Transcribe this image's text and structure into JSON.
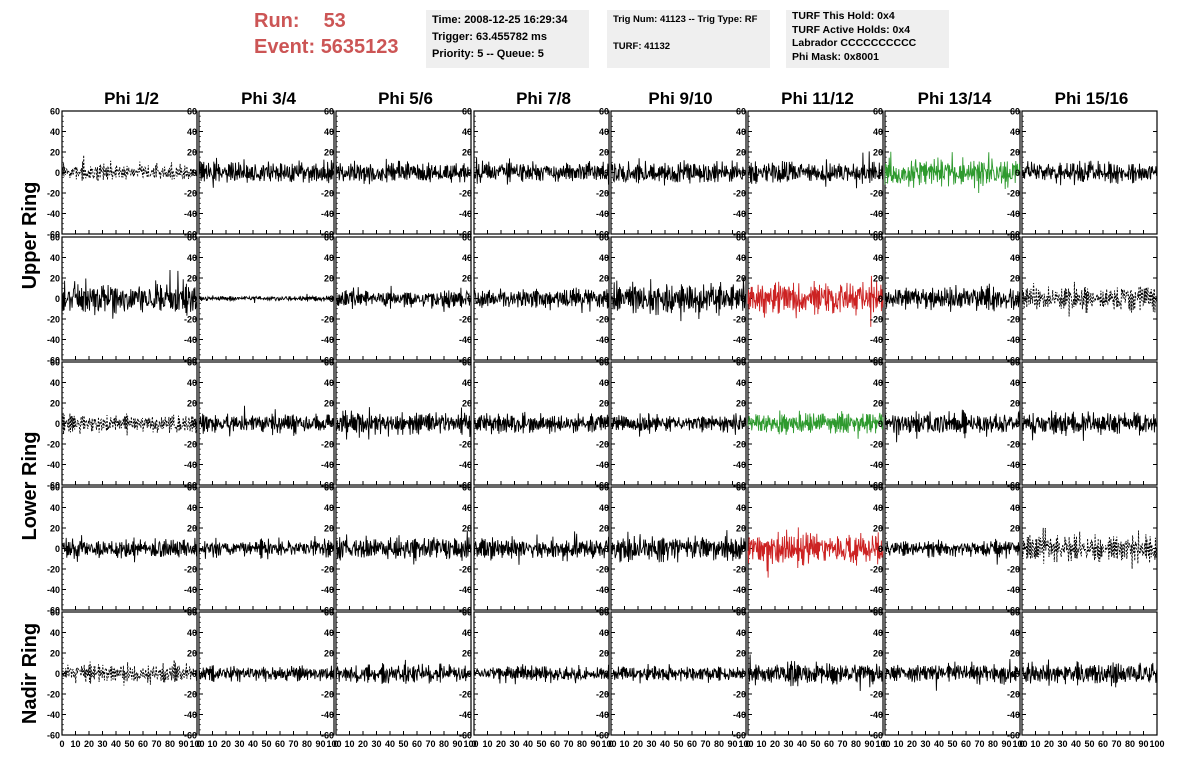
{
  "header": {
    "run_label": "Run:",
    "run_value": "53",
    "event_label": "Event:",
    "event_value": "5635123",
    "time_line": "Time: 2008-12-25 16:29:34",
    "trigger_line": "Trigger: 63.455782 ms",
    "priority_line": "Priority: 5 -- Queue: 5",
    "trig_line": "Trig Num: 41123 -- Trig Type: RF",
    "turf_line": "TURF: 41132",
    "turf_hold_line": "TURF This Hold: 0x4",
    "turf_active_line": "TURF Active Holds: 0x4",
    "labrador_line": "Labrador CCCCCCCCCC",
    "phi_mask_line": "Phi Mask: 0x8001"
  },
  "colors": {
    "header_red": "#cc5555",
    "info_bg": "#efefef",
    "trace_black": "#000000",
    "trace_green": "#2e9a2e",
    "trace_red": "#cc2222"
  },
  "chart_data": {
    "type": "line",
    "columns": [
      "Phi 1/2",
      "Phi 3/4",
      "Phi 5/6",
      "Phi 7/8",
      "Phi 9/10",
      "Phi 11/12",
      "Phi 13/14",
      "Phi 15/16"
    ],
    "rows": [
      "Upper Ring",
      "Lower Ring",
      "Nadir Ring"
    ],
    "xlim": [
      0,
      100
    ],
    "ylim": [
      -60,
      60
    ],
    "x_ticks": [
      0,
      10,
      20,
      30,
      40,
      50,
      60,
      70,
      80,
      90,
      100
    ],
    "x_tick_labels": [
      "0",
      "10",
      "20",
      "30",
      "40",
      "50",
      "60",
      "70",
      "80",
      "90",
      "100"
    ],
    "y_ticks": [
      60,
      40,
      20,
      0,
      -20,
      -40,
      -60
    ],
    "y_tick_labels": [
      "60",
      "40",
      "20",
      "0",
      "-20",
      "-40",
      "-60"
    ],
    "panels": [
      {
        "row": 0,
        "col": 0,
        "style": "dashed",
        "color": "black",
        "amplitude": 10
      },
      {
        "row": 0,
        "col": 1,
        "style": "solid",
        "color": "black",
        "amplitude": 14
      },
      {
        "row": 0,
        "col": 2,
        "style": "solid",
        "color": "black",
        "amplitude": 13
      },
      {
        "row": 0,
        "col": 3,
        "style": "solid",
        "color": "black",
        "amplitude": 13
      },
      {
        "row": 0,
        "col": 4,
        "style": "solid",
        "color": "black",
        "amplitude": 14
      },
      {
        "row": 0,
        "col": 5,
        "style": "solid",
        "color": "black",
        "amplitude": 13
      },
      {
        "row": 0,
        "col": 6,
        "style": "solid",
        "color": "green",
        "amplitude": 17
      },
      {
        "row": 0,
        "col": 7,
        "style": "solid",
        "color": "black",
        "amplitude": 14
      },
      {
        "row": 1,
        "col": 0,
        "style": "solid",
        "color": "black",
        "amplitude": 20
      },
      {
        "row": 1,
        "col": 1,
        "style": "solid",
        "color": "black",
        "amplitude": 3
      },
      {
        "row": 1,
        "col": 2,
        "style": "solid",
        "color": "black",
        "amplitude": 11
      },
      {
        "row": 1,
        "col": 3,
        "style": "solid",
        "color": "black",
        "amplitude": 12
      },
      {
        "row": 1,
        "col": 4,
        "style": "solid",
        "color": "black",
        "amplitude": 19
      },
      {
        "row": 1,
        "col": 5,
        "style": "solid",
        "color": "red",
        "amplitude": 20
      },
      {
        "row": 1,
        "col": 6,
        "style": "solid",
        "color": "black",
        "amplitude": 14
      },
      {
        "row": 1,
        "col": 7,
        "style": "dashed",
        "color": "black",
        "amplitude": 16
      },
      {
        "row": 2,
        "col": 0,
        "style": "dashed",
        "color": "black",
        "amplitude": 11
      },
      {
        "row": 2,
        "col": 1,
        "style": "solid",
        "color": "black",
        "amplitude": 12
      },
      {
        "row": 2,
        "col": 2,
        "style": "solid",
        "color": "black",
        "amplitude": 14
      },
      {
        "row": 2,
        "col": 3,
        "style": "solid",
        "color": "black",
        "amplitude": 12
      },
      {
        "row": 2,
        "col": 4,
        "style": "solid",
        "color": "black",
        "amplitude": 11
      },
      {
        "row": 2,
        "col": 5,
        "style": "solid",
        "color": "green",
        "amplitude": 14
      },
      {
        "row": 2,
        "col": 6,
        "style": "solid",
        "color": "black",
        "amplitude": 14
      },
      {
        "row": 2,
        "col": 7,
        "style": "solid",
        "color": "black",
        "amplitude": 14
      },
      {
        "row": 3,
        "col": 0,
        "style": "solid",
        "color": "black",
        "amplitude": 12
      },
      {
        "row": 3,
        "col": 1,
        "style": "solid",
        "color": "black",
        "amplitude": 10
      },
      {
        "row": 3,
        "col": 2,
        "style": "solid",
        "color": "black",
        "amplitude": 15
      },
      {
        "row": 3,
        "col": 3,
        "style": "solid",
        "color": "black",
        "amplitude": 13
      },
      {
        "row": 3,
        "col": 4,
        "style": "solid",
        "color": "black",
        "amplitude": 15
      },
      {
        "row": 3,
        "col": 5,
        "style": "solid",
        "color": "red",
        "amplitude": 20
      },
      {
        "row": 3,
        "col": 6,
        "style": "solid",
        "color": "black",
        "amplitude": 10
      },
      {
        "row": 3,
        "col": 7,
        "style": "dashed",
        "color": "black",
        "amplitude": 16
      },
      {
        "row": 4,
        "col": 0,
        "style": "dashed",
        "color": "black",
        "amplitude": 12
      },
      {
        "row": 4,
        "col": 1,
        "style": "solid",
        "color": "black",
        "amplitude": 9
      },
      {
        "row": 4,
        "col": 2,
        "style": "solid",
        "color": "black",
        "amplitude": 11
      },
      {
        "row": 4,
        "col": 3,
        "style": "solid",
        "color": "black",
        "amplitude": 10
      },
      {
        "row": 4,
        "col": 4,
        "style": "solid",
        "color": "black",
        "amplitude": 9
      },
      {
        "row": 4,
        "col": 5,
        "style": "solid",
        "color": "black",
        "amplitude": 13
      },
      {
        "row": 4,
        "col": 6,
        "style": "solid",
        "color": "black",
        "amplitude": 11
      },
      {
        "row": 4,
        "col": 7,
        "style": "solid",
        "color": "black",
        "amplitude": 14
      }
    ]
  }
}
